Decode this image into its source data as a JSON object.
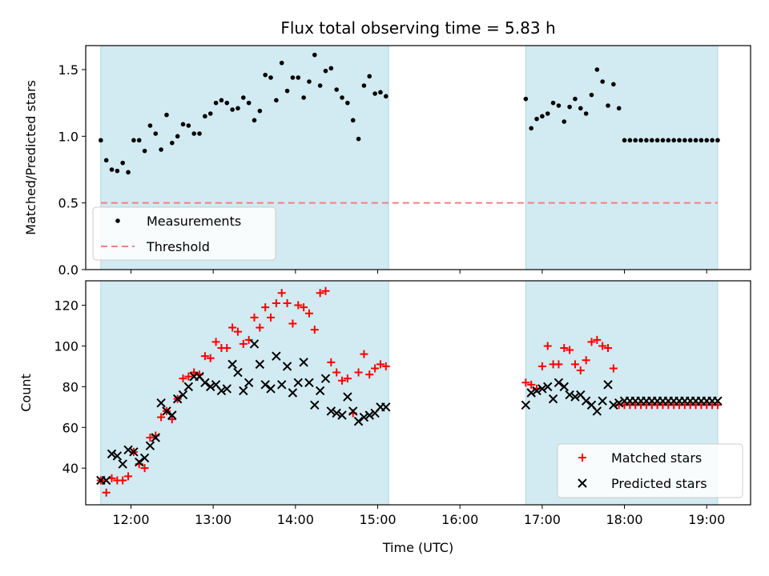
{
  "figure": {
    "title": "Flux total observing time = 5.83 h",
    "xlabel": "Time (UTC)",
    "colors": {
      "shade": "#add8e6",
      "threshold": "#f08080",
      "measurements": "#000000",
      "matched": "#ff0000",
      "predicted": "#000000"
    }
  },
  "chart_data": [
    {
      "type": "scatter",
      "ylabel": "Matched/Predicted stars",
      "xlim": [
        "11:27",
        "19:32"
      ],
      "ylim": [
        0,
        1.68
      ],
      "yticks": [
        0.0,
        0.5,
        1.0,
        1.5
      ],
      "ytick_labels": [
        "0.0",
        "0.5",
        "1.0",
        "1.5"
      ],
      "shaded_intervals": [
        [
          "11:38",
          "15:08"
        ],
        [
          "16:48",
          "19:08"
        ]
      ],
      "threshold": {
        "name": "Threshold",
        "value": 0.5,
        "x_range": [
          "11:38",
          "19:08"
        ]
      },
      "legend": {
        "location": "lower-left",
        "entries": [
          "Measurements",
          "Threshold"
        ]
      },
      "series": [
        {
          "name": "Measurements",
          "marker": "dot",
          "x": [
            "11:38",
            "11:42",
            "11:46",
            "11:50",
            "11:54",
            "11:58",
            "12:02",
            "12:06",
            "12:10",
            "12:14",
            "12:18",
            "12:22",
            "12:26",
            "12:30",
            "12:34",
            "12:38",
            "12:42",
            "12:46",
            "12:50",
            "12:54",
            "12:58",
            "13:02",
            "13:06",
            "13:10",
            "13:14",
            "13:18",
            "13:22",
            "13:26",
            "13:30",
            "13:34",
            "13:38",
            "13:42",
            "13:46",
            "13:50",
            "13:54",
            "13:58",
            "14:02",
            "14:06",
            "14:10",
            "14:14",
            "14:18",
            "14:22",
            "14:26",
            "14:30",
            "14:34",
            "14:38",
            "14:42",
            "14:46",
            "14:50",
            "14:54",
            "14:58",
            "15:02",
            "15:06",
            "16:48",
            "16:52",
            "16:56",
            "17:00",
            "17:04",
            "17:08",
            "17:12",
            "17:16",
            "17:20",
            "17:24",
            "17:28",
            "17:32",
            "17:36",
            "17:40",
            "17:44",
            "17:48",
            "17:52",
            "17:56",
            "18:00",
            "18:04",
            "18:08",
            "18:12",
            "18:16",
            "18:20",
            "18:24",
            "18:28",
            "18:32",
            "18:36",
            "18:40",
            "18:44",
            "18:48",
            "18:52",
            "18:56",
            "19:00",
            "19:04",
            "19:08"
          ],
          "y": [
            0.97,
            0.82,
            0.75,
            0.74,
            0.8,
            0.73,
            0.97,
            0.97,
            0.89,
            1.08,
            1.02,
            0.9,
            1.16,
            0.95,
            1.0,
            1.09,
            1.08,
            1.02,
            1.02,
            1.15,
            1.17,
            1.25,
            1.27,
            1.25,
            1.2,
            1.21,
            1.29,
            1.25,
            1.12,
            1.19,
            1.46,
            1.44,
            1.27,
            1.55,
            1.34,
            1.44,
            1.44,
            1.29,
            1.41,
            1.61,
            1.38,
            1.49,
            1.51,
            1.35,
            1.29,
            1.25,
            1.12,
            0.98,
            1.38,
            1.45,
            1.32,
            1.33,
            1.3,
            1.28,
            1.06,
            1.13,
            1.15,
            1.17,
            1.25,
            1.23,
            1.11,
            1.22,
            1.28,
            1.21,
            1.17,
            1.31,
            1.5,
            1.41,
            1.23,
            1.39,
            1.21,
            0.97,
            0.97,
            0.97,
            0.97,
            0.97,
            0.97,
            0.97,
            0.97,
            0.97,
            0.97,
            0.97,
            0.97,
            0.97,
            0.97,
            0.97,
            0.97,
            0.97,
            0.97
          ]
        }
      ]
    },
    {
      "type": "scatter",
      "ylabel": "Count",
      "xlim": [
        "11:27",
        "19:32"
      ],
      "ylim": [
        22,
        132
      ],
      "yticks": [
        40,
        60,
        80,
        100,
        120
      ],
      "ytick_labels": [
        "40",
        "60",
        "80",
        "100",
        "120"
      ],
      "xticks": [
        "12:00",
        "13:00",
        "14:00",
        "15:00",
        "16:00",
        "17:00",
        "18:00",
        "19:00"
      ],
      "xtick_labels": [
        "12:00",
        "13:00",
        "14:00",
        "15:00",
        "16:00",
        "17:00",
        "18:00",
        "19:00"
      ],
      "shaded_intervals": [
        [
          "11:38",
          "15:08"
        ],
        [
          "16:48",
          "19:08"
        ]
      ],
      "legend": {
        "location": "lower-right",
        "entries": [
          "Matched stars",
          "Predicted stars"
        ]
      },
      "series": [
        {
          "name": "Matched stars",
          "marker": "plus",
          "x": [
            "11:38",
            "11:42",
            "11:46",
            "11:50",
            "11:54",
            "11:58",
            "12:02",
            "12:06",
            "12:10",
            "12:14",
            "12:18",
            "12:22",
            "12:26",
            "12:30",
            "12:34",
            "12:38",
            "12:42",
            "12:46",
            "12:50",
            "12:54",
            "12:58",
            "13:02",
            "13:06",
            "13:10",
            "13:14",
            "13:18",
            "13:22",
            "13:26",
            "13:30",
            "13:34",
            "13:38",
            "13:42",
            "13:46",
            "13:50",
            "13:54",
            "13:58",
            "14:02",
            "14:06",
            "14:10",
            "14:14",
            "14:18",
            "14:22",
            "14:26",
            "14:30",
            "14:34",
            "14:38",
            "14:42",
            "14:46",
            "14:50",
            "14:54",
            "14:58",
            "15:02",
            "15:06",
            "16:48",
            "16:52",
            "16:56",
            "17:00",
            "17:04",
            "17:08",
            "17:12",
            "17:16",
            "17:20",
            "17:24",
            "17:28",
            "17:32",
            "17:36",
            "17:40",
            "17:44",
            "17:48",
            "17:52",
            "17:56",
            "18:00",
            "18:04",
            "18:08",
            "18:12",
            "18:16",
            "18:20",
            "18:24",
            "18:28",
            "18:32",
            "18:36",
            "18:40",
            "18:44",
            "18:48",
            "18:52",
            "18:56",
            "19:00",
            "19:04",
            "19:08"
          ],
          "y": [
            34,
            28,
            35,
            34,
            34,
            36,
            48,
            42,
            40,
            55,
            56,
            65,
            68,
            64,
            74,
            84,
            85,
            87,
            86,
            95,
            94,
            102,
            99,
            99,
            109,
            107,
            101,
            103,
            114,
            109,
            119,
            114,
            121,
            126,
            121,
            111,
            120,
            119,
            116,
            108,
            126,
            127,
            92,
            87,
            83,
            84,
            67,
            87,
            96,
            86,
            89,
            91,
            90,
            82,
            81,
            79,
            90,
            100,
            91,
            91,
            99,
            98,
            91,
            88,
            93,
            102,
            103,
            100,
            99,
            89,
            71,
            71,
            71,
            71,
            71,
            71,
            71,
            71,
            71,
            71,
            71,
            71,
            71,
            71,
            71,
            71,
            71,
            71,
            71
          ],
          "_note": ""
        },
        {
          "name": "Predicted stars",
          "marker": "x",
          "x": [
            "11:38",
            "11:42",
            "11:46",
            "11:50",
            "11:54",
            "11:58",
            "12:02",
            "12:06",
            "12:10",
            "12:14",
            "12:18",
            "12:22",
            "12:26",
            "12:30",
            "12:34",
            "12:38",
            "12:42",
            "12:46",
            "12:50",
            "12:54",
            "12:58",
            "13:02",
            "13:06",
            "13:10",
            "13:14",
            "13:18",
            "13:22",
            "13:26",
            "13:30",
            "13:34",
            "13:38",
            "13:42",
            "13:46",
            "13:50",
            "13:54",
            "13:58",
            "14:02",
            "14:06",
            "14:10",
            "14:14",
            "14:18",
            "14:22",
            "14:26",
            "14:30",
            "14:34",
            "14:38",
            "14:42",
            "14:46",
            "14:50",
            "14:54",
            "14:58",
            "15:02",
            "15:06",
            "16:48",
            "16:52",
            "16:56",
            "17:00",
            "17:04",
            "17:08",
            "17:12",
            "17:16",
            "17:20",
            "17:24",
            "17:28",
            "17:32",
            "17:36",
            "17:40",
            "17:44",
            "17:48",
            "17:52",
            "17:56",
            "18:00",
            "18:04",
            "18:08",
            "18:12",
            "18:16",
            "18:20",
            "18:24",
            "18:28",
            "18:32",
            "18:36",
            "18:40",
            "18:44",
            "18:48",
            "18:52",
            "18:56",
            "19:00",
            "19:04",
            "19:08"
          ],
          "y": [
            34,
            34,
            47,
            46,
            42,
            49,
            48,
            43,
            45,
            51,
            55,
            72,
            68,
            66,
            74,
            76,
            80,
            85,
            85,
            82,
            80,
            81,
            78,
            79,
            91,
            87,
            78,
            82,
            101,
            91,
            81,
            79,
            95,
            81,
            90,
            77,
            82,
            92,
            82,
            71,
            78,
            84,
            68,
            67,
            66,
            75,
            68,
            63,
            65,
            66,
            67,
            70,
            70,
            71,
            77,
            78,
            79,
            80,
            74,
            82,
            80,
            76,
            75,
            76,
            73,
            71,
            68,
            73,
            81,
            71,
            72,
            73,
            73,
            73,
            73,
            73,
            73,
            73,
            73,
            73,
            73,
            73,
            73,
            73,
            73,
            73,
            73,
            73,
            73
          ]
        }
      ]
    }
  ]
}
